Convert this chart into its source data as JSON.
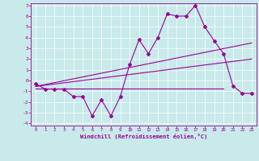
{
  "xlabel": "Windchill (Refroidissement éolien,°C)",
  "bg_color": "#c8eaea",
  "line_color": "#990099",
  "x_data": [
    0,
    1,
    2,
    3,
    4,
    5,
    6,
    7,
    8,
    9,
    10,
    11,
    12,
    13,
    14,
    15,
    16,
    17,
    18,
    19,
    20,
    21,
    22,
    23
  ],
  "y_data": [
    -0.3,
    -0.8,
    -0.8,
    -0.8,
    -1.5,
    -1.5,
    -3.3,
    -1.8,
    -3.3,
    -1.5,
    1.5,
    3.8,
    2.5,
    4.0,
    6.2,
    6.0,
    6.0,
    7.0,
    5.0,
    3.7,
    2.5,
    -0.5,
    -1.2,
    -1.2
  ],
  "ylim": [
    -4.2,
    7.2
  ],
  "xlim": [
    -0.5,
    23.5
  ],
  "yticks": [
    -4,
    -3,
    -2,
    -1,
    0,
    1,
    2,
    3,
    4,
    5,
    6,
    7
  ],
  "xticks": [
    0,
    1,
    2,
    3,
    4,
    5,
    6,
    7,
    8,
    9,
    10,
    11,
    12,
    13,
    14,
    15,
    16,
    17,
    18,
    19,
    20,
    21,
    22,
    23
  ],
  "trend1_x": [
    0,
    23
  ],
  "trend1_y": [
    -0.55,
    3.5
  ],
  "trend2_x": [
    0,
    23
  ],
  "trend2_y": [
    -0.55,
    2.0
  ],
  "trend3_x": [
    0,
    20
  ],
  "trend3_y": [
    -0.75,
    -0.75
  ]
}
